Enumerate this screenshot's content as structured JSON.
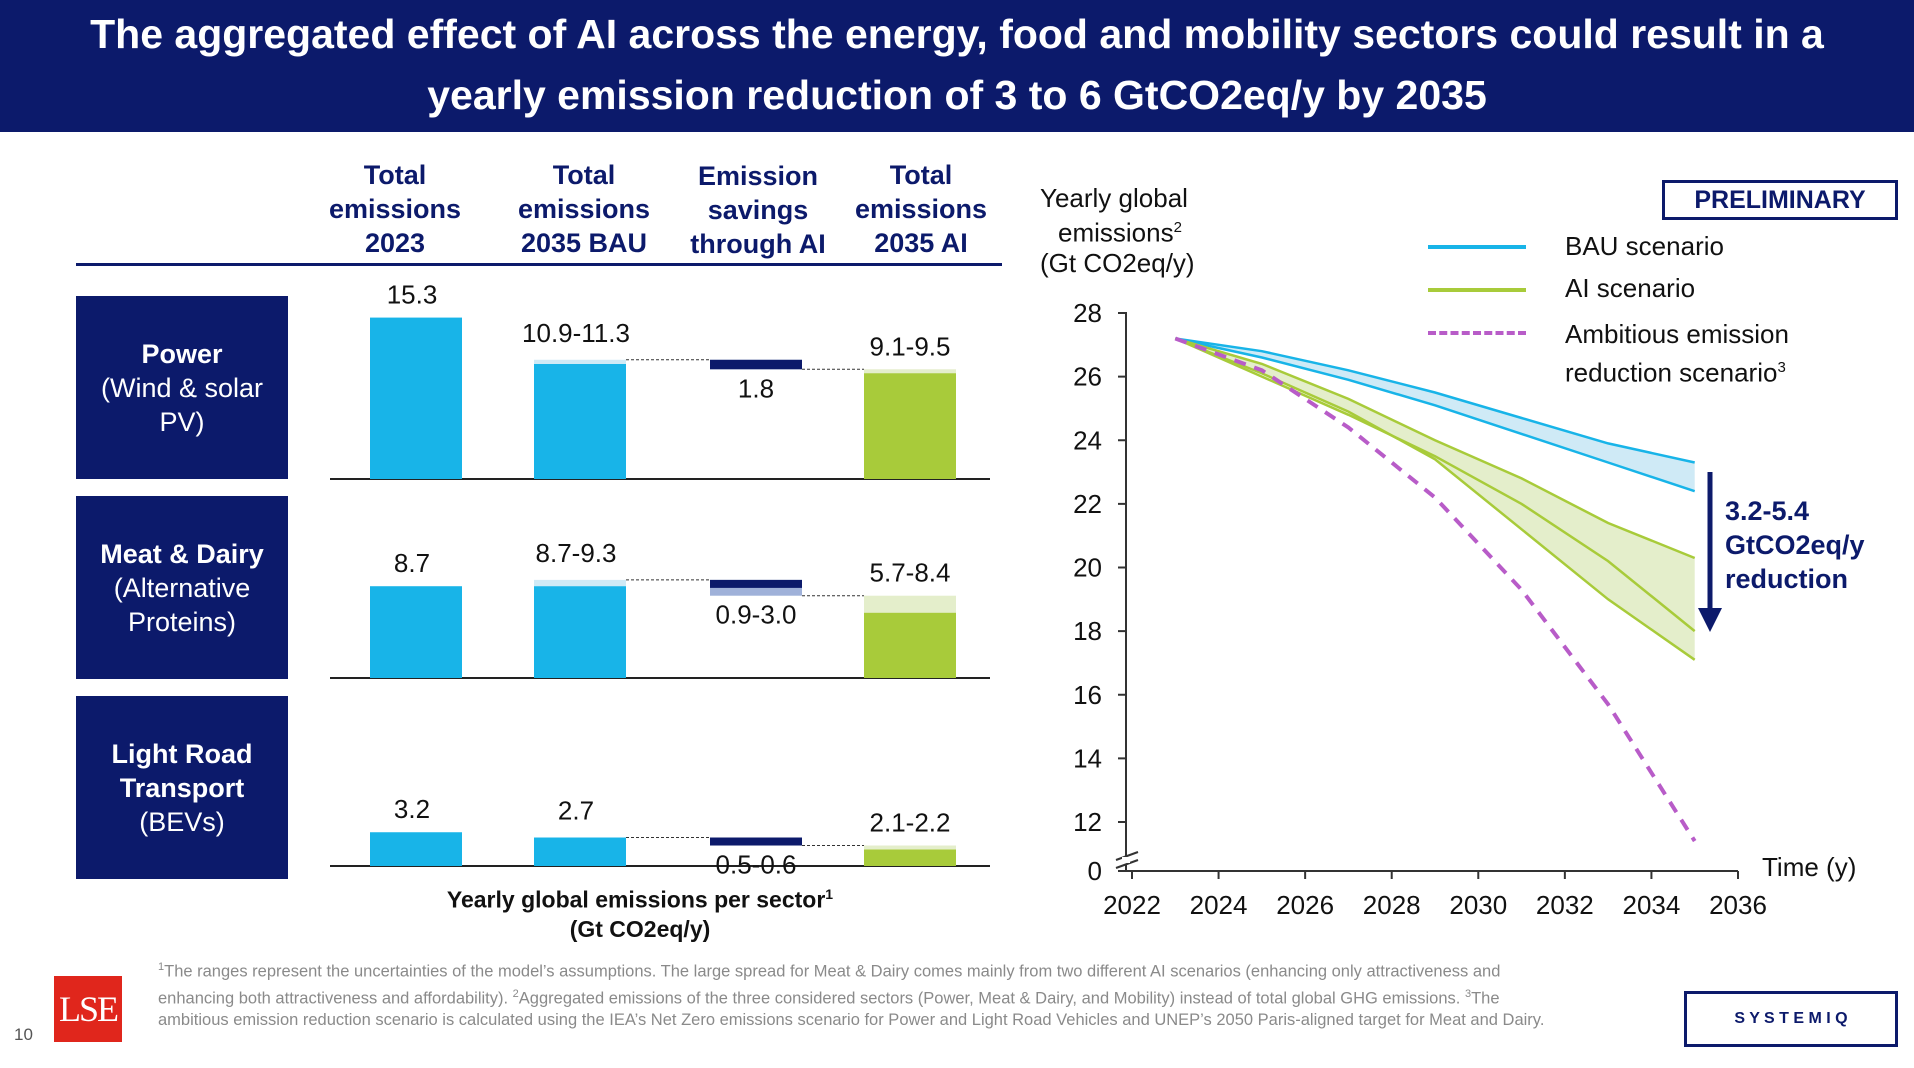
{
  "title": "The aggregated effect of AI across the energy, food and mobility sectors could result in a yearly emission reduction of 3 to 6 GtCO2eq/y by 2035",
  "colors": {
    "navy": "#0c1a6b",
    "bau_blue": "#18b4e8",
    "ai_green": "#a8cb3a",
    "ambitious_purple": "#b85cc8",
    "light_blue": "#cfeaf6",
    "light_green": "#e4eecb",
    "light_navy": "#9fb1d9"
  },
  "table": {
    "columns": [
      "Total emissions 2023",
      "Total emissions 2035 BAU",
      "Emission savings through AI",
      "Total emissions 2035 AI"
    ],
    "column_lines": [
      [
        "Total",
        "emissions",
        "2023"
      ],
      [
        "Total",
        "emissions",
        "2035 BAU"
      ],
      [
        "Emission",
        "savings",
        "through AI"
      ],
      [
        "Total",
        "emissions",
        "2035 AI"
      ]
    ],
    "sectors": [
      {
        "name": "Power",
        "sub1": "(Wind & solar",
        "sub2": "PV)",
        "v2023": 15.3,
        "bau_low": 10.9,
        "bau_high": 11.3,
        "sav_low": 1.8,
        "sav_high": 1.8,
        "ai_low": 9.1,
        "ai_high": 9.5,
        "label_2023": "15.3",
        "label_bau": "10.9-11.3",
        "label_sav": "1.8",
        "label_ai": "9.1-9.5"
      },
      {
        "name": "Meat & Dairy",
        "sub1": "(Alternative",
        "sub2": "Proteins)",
        "v2023": 8.7,
        "bau_low": 8.7,
        "bau_high": 9.3,
        "sav_low": 0.9,
        "sav_high": 3.0,
        "ai_low": 5.7,
        "ai_high": 8.4,
        "label_2023": "8.7",
        "label_bau": "8.7-9.3",
        "label_sav": "0.9-3.0",
        "label_ai": "5.7-8.4"
      },
      {
        "name": "Light Road",
        "name2": "Transport",
        "sub1": "(BEVs)",
        "v2023": 3.2,
        "bau_low": 2.7,
        "bau_high": 2.7,
        "sav_low": 0.5,
        "sav_high": 0.6,
        "ai_low": 2.1,
        "ai_high": 2.2,
        "label_2023": "3.2",
        "label_bau": "2.7",
        "label_sav": "0.5-0.6",
        "label_ai": "2.1-2.2"
      }
    ],
    "xlabel_line1": "Yearly global emissions per sector",
    "xlabel_sup": "1",
    "xlabel_line2": "(Gt CO2eq/y)"
  },
  "chart_data": {
    "type": "line",
    "ylabel_line1": "Yearly global",
    "ylabel_line2": "emissions",
    "ylabel_sup": "2",
    "ylabel_line3": "(Gt CO2eq/y)",
    "xlabel": "Time (y)",
    "x_ticks": [
      2022,
      2024,
      2026,
      2028,
      2030,
      2032,
      2034,
      2036
    ],
    "y_ticks": [
      12,
      14,
      16,
      18,
      20,
      22,
      24,
      26,
      28
    ],
    "y_zero_label": "0",
    "ylim": [
      11,
      28.5
    ],
    "xlim": [
      2022,
      2036
    ],
    "badge": "PRELIMINARY",
    "annotation_lines": [
      "3.2-5.4",
      "GtCO2eq/y",
      "reduction"
    ],
    "legend": [
      {
        "name": "BAU scenario",
        "style": "solid",
        "color": "#18b4e8"
      },
      {
        "name": "AI scenario",
        "style": "solid",
        "color": "#a8cb3a"
      },
      {
        "name": "Ambitious emission",
        "name2": "reduction scenario",
        "sup": "3",
        "style": "dashed",
        "color": "#b85cc8"
      }
    ],
    "series": [
      {
        "name": "BAU upper",
        "color": "#18b4e8",
        "x": [
          2023,
          2025,
          2027,
          2029,
          2031,
          2033,
          2035
        ],
        "y": [
          27.2,
          26.8,
          26.2,
          25.5,
          24.7,
          23.9,
          23.3
        ]
      },
      {
        "name": "BAU lower",
        "color": "#18b4e8",
        "x": [
          2023,
          2025,
          2027,
          2029,
          2031,
          2033,
          2035
        ],
        "y": [
          27.2,
          26.6,
          25.9,
          25.1,
          24.2,
          23.3,
          22.4
        ]
      },
      {
        "name": "AI upper",
        "color": "#a8cb3a",
        "x": [
          2023,
          2025,
          2027,
          2029,
          2031,
          2033,
          2035
        ],
        "y": [
          27.2,
          26.4,
          25.3,
          24.0,
          22.8,
          21.4,
          20.3
        ]
      },
      {
        "name": "AI lower",
        "color": "#a8cb3a",
        "x": [
          2023,
          2025,
          2027,
          2029,
          2031,
          2033,
          2035
        ],
        "y": [
          27.2,
          26.0,
          24.8,
          23.5,
          22.0,
          20.2,
          18.0
        ]
      },
      {
        "name": "AI low edge",
        "color": "#a8cb3a",
        "x": [
          2023,
          2025,
          2027,
          2029,
          2031,
          2033,
          2035
        ],
        "y": [
          27.2,
          26.1,
          24.9,
          23.4,
          21.2,
          19.0,
          17.1
        ]
      },
      {
        "name": "Ambitious",
        "color": "#b85cc8",
        "dashed": true,
        "x": [
          2023,
          2025,
          2027,
          2029,
          2031,
          2033,
          2035
        ],
        "y": [
          27.2,
          26.2,
          24.4,
          22.2,
          19.3,
          15.7,
          11.4
        ]
      }
    ]
  },
  "footnote": {
    "sup1": "1",
    "text1": "The ranges represent the uncertainties of the model’s assumptions. The large spread for Meat & Dairy comes mainly from two different AI scenarios (enhancing only attractiveness and enhancing both attractiveness and affordability). ",
    "sup2": "2",
    "text2": "Aggregated emissions of the three considered sectors (Power, Meat & Dairy, and Mobility) instead of total global GHG emissions. ",
    "sup3": "3",
    "text3": "The ambitious emission reduction scenario is calculated using the IEA’s Net Zero emissions scenario for Power and Light Road Vehicles and UNEP’s 2050 Paris-aligned target for Meat and Dairy."
  },
  "page_number": "10",
  "logo_lse": "LSE",
  "logo_systemiq": "S Y S T E M I Q"
}
